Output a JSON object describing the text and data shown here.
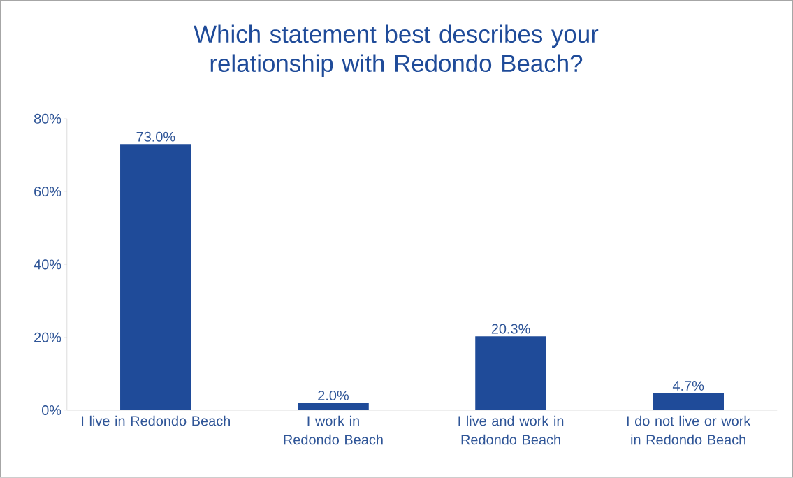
{
  "chart_data": {
    "type": "bar",
    "title": "Which statement best describes your relationship with Redondo Beach?",
    "categories": [
      "I live in Redondo Beach",
      "I work in Redondo Beach",
      "I live and work in Redondo Beach",
      "I do not live or work in Redondo Beach"
    ],
    "values": [
      73.0,
      2.0,
      20.3,
      4.7
    ],
    "value_labels": [
      "73.0%",
      "2.0%",
      "20.3%",
      "4.7%"
    ],
    "color": "#1f4b99",
    "ylim": [
      0,
      80
    ],
    "yticks": [
      {
        "value": 0,
        "label": "0%"
      },
      {
        "value": 20,
        "label": "20%"
      },
      {
        "value": 40,
        "label": "40%"
      },
      {
        "value": 60,
        "label": "60%"
      },
      {
        "value": 80,
        "label": "80%"
      }
    ],
    "grid": false
  }
}
